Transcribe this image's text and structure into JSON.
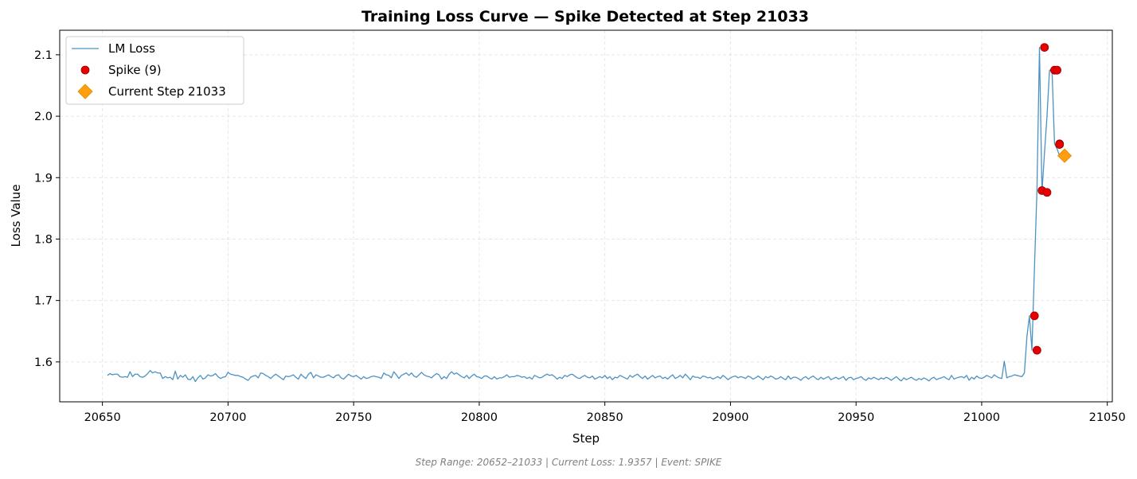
{
  "chart_data": {
    "type": "line",
    "title": "Training Loss Curve — Spike Detected at Step 21033",
    "xlabel": "Step",
    "ylabel": "Loss Value",
    "xlim": [
      20633,
      21052
    ],
    "ylim": [
      1.535,
      2.14
    ],
    "xticks": [
      20650,
      20700,
      20750,
      20800,
      20850,
      20900,
      20950,
      21000,
      21050
    ],
    "yticks": [
      1.6,
      1.7,
      1.8,
      1.9,
      2.0,
      2.1
    ],
    "grid": true,
    "legend_position": "top-left",
    "series": [
      {
        "name": "LM Loss",
        "kind": "line",
        "color": "#1f77b4",
        "x_start": 20652,
        "x_step": 1,
        "y": [
          1.578,
          1.581,
          1.579,
          1.58,
          1.58,
          1.576,
          1.575,
          1.576,
          1.575,
          1.584,
          1.576,
          1.58,
          1.58,
          1.576,
          1.575,
          1.577,
          1.581,
          1.586,
          1.582,
          1.584,
          1.582,
          1.582,
          1.573,
          1.576,
          1.574,
          1.575,
          1.571,
          1.585,
          1.572,
          1.578,
          1.575,
          1.579,
          1.572,
          1.571,
          1.576,
          1.568,
          1.574,
          1.578,
          1.572,
          1.574,
          1.579,
          1.577,
          1.578,
          1.581,
          1.576,
          1.573,
          1.575,
          1.576,
          1.583,
          1.58,
          1.579,
          1.578,
          1.578,
          1.576,
          1.575,
          1.572,
          1.57,
          1.575,
          1.577,
          1.578,
          1.574,
          1.582,
          1.581,
          1.578,
          1.576,
          1.573,
          1.577,
          1.58,
          1.577,
          1.574,
          1.571,
          1.577,
          1.576,
          1.577,
          1.579,
          1.575,
          1.572,
          1.58,
          1.576,
          1.573,
          1.58,
          1.583,
          1.574,
          1.579,
          1.577,
          1.575,
          1.575,
          1.577,
          1.579,
          1.576,
          1.574,
          1.578,
          1.579,
          1.574,
          1.572,
          1.576,
          1.58,
          1.577,
          1.576,
          1.578,
          1.575,
          1.572,
          1.576,
          1.573,
          1.574,
          1.576,
          1.577,
          1.576,
          1.575,
          1.573,
          1.582,
          1.579,
          1.578,
          1.574,
          1.584,
          1.579,
          1.573,
          1.578,
          1.58,
          1.582,
          1.578,
          1.582,
          1.577,
          1.575,
          1.579,
          1.583,
          1.579,
          1.577,
          1.576,
          1.574,
          1.578,
          1.581,
          1.579,
          1.572,
          1.576,
          1.573,
          1.58,
          1.584,
          1.58,
          1.582,
          1.579,
          1.576,
          1.574,
          1.578,
          1.573,
          1.577,
          1.58,
          1.576,
          1.575,
          1.573,
          1.577,
          1.577,
          1.574,
          1.572,
          1.576,
          1.572,
          1.574,
          1.574,
          1.576,
          1.579,
          1.575,
          1.576,
          1.576,
          1.578,
          1.577,
          1.575,
          1.576,
          1.573,
          1.575,
          1.572,
          1.578,
          1.576,
          1.574,
          1.575,
          1.578,
          1.58,
          1.578,
          1.579,
          1.576,
          1.572,
          1.575,
          1.573,
          1.578,
          1.576,
          1.579,
          1.58,
          1.577,
          1.574,
          1.573,
          1.576,
          1.578,
          1.575,
          1.574,
          1.577,
          1.572,
          1.574,
          1.576,
          1.574,
          1.578,
          1.573,
          1.576,
          1.571,
          1.575,
          1.574,
          1.578,
          1.576,
          1.574,
          1.572,
          1.578,
          1.575,
          1.578,
          1.58,
          1.576,
          1.573,
          1.577,
          1.572,
          1.575,
          1.578,
          1.574,
          1.576,
          1.577,
          1.573,
          1.575,
          1.572,
          1.576,
          1.579,
          1.573,
          1.575,
          1.578,
          1.574,
          1.58,
          1.576,
          1.571,
          1.577,
          1.575,
          1.575,
          1.573,
          1.577,
          1.576,
          1.574,
          1.575,
          1.572,
          1.574,
          1.576,
          1.573,
          1.578,
          1.575,
          1.571,
          1.574,
          1.576,
          1.577,
          1.574,
          1.576,
          1.575,
          1.573,
          1.577,
          1.575,
          1.572,
          1.574,
          1.577,
          1.574,
          1.571,
          1.576,
          1.574,
          1.577,
          1.575,
          1.572,
          1.573,
          1.576,
          1.573,
          1.571,
          1.577,
          1.572,
          1.575,
          1.575,
          1.573,
          1.57,
          1.574,
          1.576,
          1.572,
          1.575,
          1.577,
          1.573,
          1.571,
          1.575,
          1.572,
          1.574,
          1.576,
          1.571,
          1.573,
          1.575,
          1.572,
          1.574,
          1.576,
          1.57,
          1.574,
          1.575,
          1.571,
          1.573,
          1.574,
          1.576,
          1.572,
          1.57,
          1.574,
          1.572,
          1.575,
          1.573,
          1.571,
          1.574,
          1.572,
          1.575,
          1.573,
          1.57,
          1.573,
          1.576,
          1.572,
          1.569,
          1.574,
          1.571,
          1.573,
          1.575,
          1.572,
          1.57,
          1.573,
          1.571,
          1.574,
          1.572,
          1.569,
          1.573,
          1.575,
          1.571,
          1.573,
          1.574,
          1.576,
          1.573,
          1.571,
          1.578,
          1.572,
          1.574,
          1.575,
          1.576,
          1.574,
          1.578,
          1.57,
          1.575,
          1.572,
          1.577,
          1.574,
          1.573,
          1.575,
          1.578,
          1.576,
          1.574,
          1.579,
          1.576,
          1.574,
          1.573,
          1.601,
          1.574,
          1.576,
          1.577,
          1.579,
          1.578,
          1.577,
          1.576,
          1.582,
          1.641,
          1.675,
          1.619,
          1.752,
          1.879,
          2.112,
          1.876,
          1.94,
          2.0,
          2.075,
          2.075,
          1.955,
          1.947,
          1.936
        ]
      },
      {
        "name": "Spike (9)",
        "kind": "scatter",
        "color": "#e80000",
        "points": [
          [
            21021,
            1.675
          ],
          [
            21022,
            1.619
          ],
          [
            21024,
            1.879
          ],
          [
            21025,
            2.112
          ],
          [
            21026,
            1.876
          ],
          [
            21029,
            2.075
          ],
          [
            21030,
            2.075
          ],
          [
            21031,
            1.955
          ],
          [
            21031,
            1.954
          ]
        ]
      },
      {
        "name": "Current Step 21033",
        "kind": "marker",
        "color": "#ff9e0f",
        "points": [
          [
            21033,
            1.9357
          ]
        ]
      }
    ]
  },
  "footer": {
    "text": "Step Range: 20652–21033 | Current Loss: 1.9357 | Event: SPIKE"
  }
}
